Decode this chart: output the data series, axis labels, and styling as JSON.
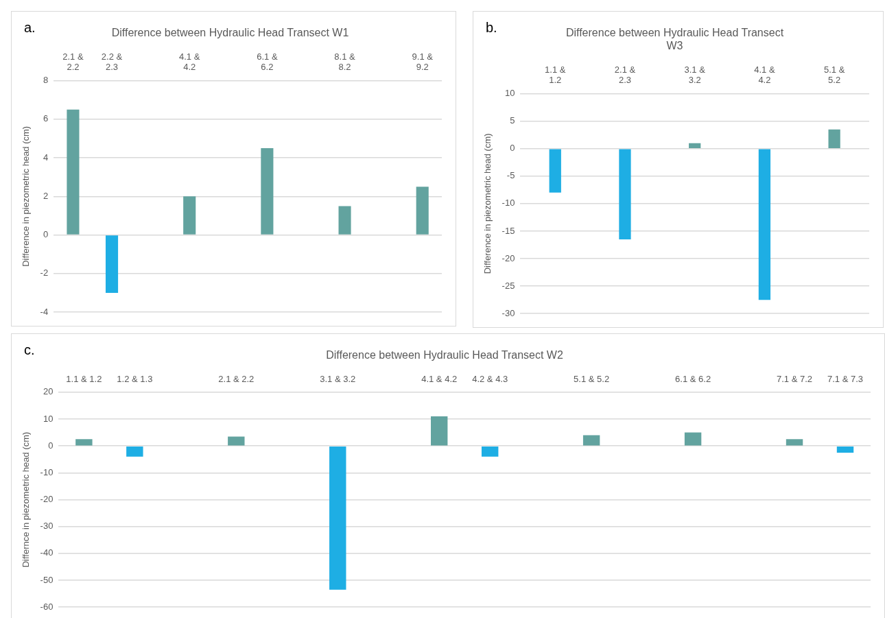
{
  "chart_data": [
    {
      "type": "bar",
      "title": "Difference between Hydraulic Head Transect W1",
      "ylabel": "Difference in piezometric head (cm)",
      "annotations": [
        "a."
      ],
      "categories": [
        "2.1 & 2.2",
        "2.2 & 2.3",
        null,
        "4.1 & 4.2",
        null,
        "6.1 & 6.2",
        null,
        "8.1 & 8.2",
        null,
        "9.1 & 9.2"
      ],
      "values": [
        6.5,
        -3,
        null,
        2,
        null,
        4.5,
        null,
        1.5,
        null,
        2.5
      ],
      "colors": [
        "#62a39f",
        "#1eaee4",
        null,
        "#62a39f",
        null,
        "#62a39f",
        null,
        "#62a39f",
        null,
        "#62a39f"
      ],
      "ylim": [
        -4,
        8
      ],
      "yticks": [
        -4,
        -2,
        0,
        2,
        4,
        6,
        8
      ],
      "grid": "y",
      "legend": false
    },
    {
      "type": "bar",
      "title": "Difference between Hydraulic Head Transect W3",
      "ylabel": "Difference in piezometric head (cm)",
      "annotations": [
        "b."
      ],
      "categories": [
        "1.1 & 1.2",
        "2.1 & 2.3",
        "3.1 & 3.2",
        "4.1 & 4.2",
        "5.1 & 5.2"
      ],
      "values": [
        -8,
        -16.5,
        1,
        -27.5,
        3.5
      ],
      "colors": [
        "#1eaee4",
        "#1eaee4",
        "#62a39f",
        "#1eaee4",
        "#62a39f"
      ],
      "ylim": [
        -30,
        10
      ],
      "yticks": [
        -30,
        -25,
        -20,
        -15,
        -10,
        -5,
        0,
        5,
        10
      ],
      "grid": "y",
      "legend": false
    },
    {
      "type": "bar",
      "title": "Difference between Hydraulic Head Transect W2",
      "ylabel": "Differnce in piezometric head (cm)",
      "annotations": [
        "c."
      ],
      "categories": [
        "1.1 & 1.2",
        "1.2 & 1.3",
        null,
        "2.1 & 2.2",
        null,
        "3.1 & 3.2",
        null,
        "4.1 & 4.2",
        "4.2 & 4.3",
        null,
        "5.1 & 5.2",
        null,
        "6.1 & 6.2",
        null,
        "7.1 & 7.2",
        "7.1 & 7.3"
      ],
      "values": [
        2.5,
        -4,
        null,
        3.5,
        null,
        -53.5,
        null,
        11,
        -4,
        null,
        4,
        null,
        5,
        null,
        2.5,
        -2.5
      ],
      "colors": [
        "#62a39f",
        "#1eaee4",
        null,
        "#62a39f",
        null,
        "#1eaee4",
        null,
        "#62a39f",
        "#1eaee4",
        null,
        "#62a39f",
        null,
        "#62a39f",
        null,
        "#62a39f",
        "#1eaee4"
      ],
      "ylim": [
        -60,
        20
      ],
      "yticks": [
        -60,
        -50,
        -40,
        -30,
        -20,
        -10,
        0,
        10,
        20
      ],
      "grid": "y",
      "legend": false
    }
  ]
}
